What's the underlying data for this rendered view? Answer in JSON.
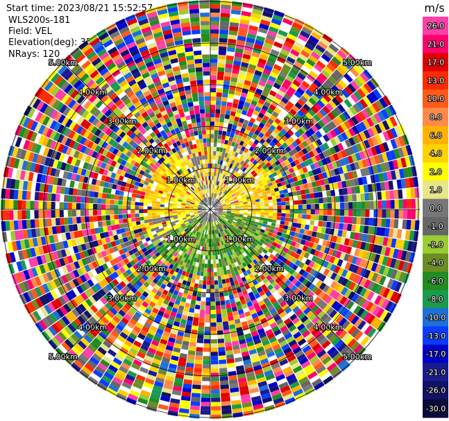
{
  "header": {
    "start_time": "Start time: 2023/08/21 15:52:57",
    "instrument": "WLS200s-181",
    "field": "Field: VEL",
    "elevation": "Elevation(deg): 35.30",
    "nrays": "NRays: 120"
  },
  "chart_data": {
    "type": "heatmap",
    "projection": "polar-ppi",
    "field": "VEL",
    "units": "m/s",
    "nrays": 120,
    "range_ring_labels": [
      "1.00km",
      "2.00km",
      "3.00km",
      "4.00km",
      "5.00km"
    ],
    "colorbar": {
      "title": "m/s",
      "ticks": [
        "26.0",
        "21.0",
        "17.0",
        "13.0",
        "10.0",
        "8.0",
        "6.0",
        "4.0",
        "2.0",
        "1.0",
        "0.0",
        "-1.0",
        "-2.0",
        "-4.0",
        "-6.0",
        "-8.0",
        "-10.0",
        "-13.0",
        "-17.0",
        "-21.0",
        "-26.0",
        "-30.0"
      ],
      "colors": [
        "#ff3ea8",
        "#ff006c",
        "#e00000",
        "#ff2a00",
        "#ff5a1a",
        "#ff8a4a",
        "#ffb300",
        "#ffd200",
        "#ffff00",
        "#e6e68a",
        "#777777",
        "#666666",
        "#9acd32",
        "#6b8e23",
        "#228b22",
        "#1a9a50",
        "#1e6fd9",
        "#0a3cff",
        "#0000c8",
        "#1a1a90",
        "#111166",
        "#0b0b3a"
      ]
    }
  }
}
